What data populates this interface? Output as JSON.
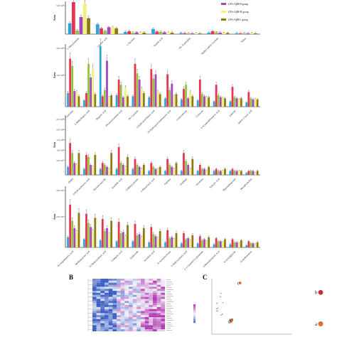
{
  "colors": {
    "groups": [
      "#2ea4d8",
      "#e8344e",
      "#8ec641",
      "#a445c3",
      "#f2ef7a",
      "#8d7b12"
    ],
    "heatmap_low": "#3b5fc4",
    "heatmap_mid": "#f4f4f8",
    "heatmap_high": "#b23ab3",
    "pca_points": [
      "#d7262c",
      "#f26b21"
    ]
  },
  "legend": {
    "entries": [
      "LPS+AβB-H group",
      "LPS+AβB-M group",
      "LPS+AβB-L group"
    ]
  },
  "panel_labels": {
    "b": "B",
    "c": "C"
  },
  "chart_data": [
    {
      "type": "bar",
      "panel": "A1",
      "ylabel": "Area",
      "y_ticks": [
        "5.0×10⁸"
      ],
      "categories": [
        "L-Phenylalanine",
        "Linoleic acid",
        "L-Tyrosine",
        "Taurine acid",
        "DL-Tryptophan",
        "Methyl indole-3-acetate",
        "Valine"
      ],
      "series_count": 6,
      "ylim": [
        0,
        9
      ],
      "values": [
        [
          3.0,
          8.8,
          1.0,
          4.7,
          8.4,
          4.4
        ],
        [
          2.7,
          1.6,
          0.9,
          1.9,
          1.9,
          1.6
        ],
        [
          0.6,
          0.8,
          0.4,
          0.5,
          0.4,
          0.4
        ],
        [
          1.4,
          0.7,
          0.6,
          0.5,
          0.4,
          0.4
        ],
        [
          0.3,
          0.25,
          0.2,
          0.2,
          0.2,
          0.2
        ],
        [
          0.4,
          0.8,
          0.5,
          0.4,
          0.3,
          0.3
        ],
        [
          0.25,
          0.2,
          0.2,
          0.2,
          0.2,
          0.2
        ]
      ],
      "sig": [
        "**",
        "a",
        "a",
        "**",
        "a"
      ]
    },
    {
      "type": "bar",
      "panel": "A2",
      "ylabel": "Area",
      "y_ticks": [
        "4.0×10⁸",
        "2.0×10⁸"
      ],
      "categories": [
        "Guanosine",
        "2-Methylbutyric acid",
        "Hippuric acid",
        "Decanoylcarnitine acid",
        "DL-Carnitine",
        "3-Hydroxyisobutyric acid",
        "20-Hydroxyeicosatetraenoic acid",
        "Corticosterone",
        "Cortisone",
        "4-Acetamidobutanoic acid",
        "Anserine",
        "Indole-3-lactic acid"
      ],
      "series_count": 6,
      "ylim": [
        0,
        6
      ],
      "values": [
        [
          1.3,
          4.6,
          3.9,
          1.5,
          1.4,
          1.0
        ],
        [
          0.6,
          1.3,
          4.1,
          2.8,
          3.6,
          1.2
        ],
        [
          5.8,
          1.0,
          1.6,
          4.4,
          0.9,
          1.1
        ],
        [
          1.1,
          2.6,
          2.1,
          0.9,
          1.8,
          1.0
        ],
        [
          1.0,
          4.1,
          3.2,
          2.6,
          1.7,
          1.3
        ],
        [
          0.9,
          3.6,
          2.7,
          3.1,
          1.4,
          1.2
        ],
        [
          0.8,
          3.1,
          1.6,
          2.2,
          1.0,
          1.2
        ],
        [
          0.7,
          1.7,
          2.1,
          0.8,
          1.4,
          1.0
        ],
        [
          0.6,
          2.6,
          1.2,
          1.0,
          0.9,
          0.9
        ],
        [
          0.5,
          2.1,
          1.1,
          0.9,
          0.8,
          0.8
        ],
        [
          0.5,
          1.9,
          0.9,
          0.8,
          0.7,
          0.8
        ],
        [
          0.4,
          1.4,
          0.8,
          0.7,
          0.7,
          0.7
        ]
      ]
    },
    {
      "type": "bar",
      "panel": "A3",
      "ylabel": "Area",
      "y_ticks": [
        "2.5×10⁸",
        "2.0×10⁸",
        "1.5×10⁸",
        "1.0×10⁸",
        "5.0×10⁷"
      ],
      "categories": [
        "DHPE",
        "3-Hydroxybenzoic acid",
        "Thromboxane B2",
        "Arachidic acid",
        "3-Methylcytosine",
        "3-Phenyllactic acid",
        "Arginine",
        "Ornithine",
        "Serotonin",
        "Salicylic acid",
        "Phytosphingosine",
        "Phosphocholine"
      ],
      "series_count": 6,
      "ylim": [
        0,
        3
      ],
      "values": [
        [
          0.4,
          1.6,
          1.1,
          0.6,
          0.5,
          1.1
        ],
        [
          0.3,
          1.0,
          0.9,
          0.5,
          0.4,
          1.0
        ],
        [
          0.3,
          0.6,
          0.5,
          0.4,
          0.3,
          1.1
        ],
        [
          0.3,
          1.4,
          0.6,
          0.5,
          0.4,
          0.9
        ],
        [
          0.3,
          0.8,
          0.5,
          0.4,
          0.3,
          0.5
        ],
        [
          0.2,
          0.6,
          0.4,
          0.3,
          0.3,
          0.4
        ],
        [
          0.2,
          0.8,
          0.5,
          0.4,
          0.3,
          0.6
        ],
        [
          0.2,
          1.1,
          0.7,
          0.5,
          0.3,
          0.8
        ],
        [
          0.2,
          0.5,
          0.3,
          0.3,
          0.2,
          0.4
        ],
        [
          0.2,
          0.3,
          0.2,
          0.2,
          0.2,
          0.3
        ],
        [
          0.2,
          0.3,
          0.2,
          0.2,
          0.2,
          0.2
        ],
        [
          0.1,
          0.2,
          0.2,
          0.2,
          0.1,
          0.2
        ]
      ]
    },
    {
      "type": "bar",
      "panel": "A4",
      "ylabel": "Area",
      "y_ticks": [
        "4.0×10⁶",
        "2.0×10⁶"
      ],
      "categories": [
        "Eicosapentaenoic acid",
        "Methylmalonic acid",
        "12-Hydroxystearic acid",
        "Ginkgolic acid",
        "Salidroside",
        "Isovaleric acid",
        "N-Acetylserotonin",
        "2-Hydroxystearic acid",
        "L-γ-Glutamyl-L-glutamine",
        "2-Phenylpropionic acid",
        "N-Acetylglycine",
        "Acetylhistamine"
      ],
      "series_count": 6,
      "ylim": [
        0,
        6
      ],
      "values": [
        [
          1.0,
          4.2,
          2.6,
          1.9,
          1.5,
          3.4
        ],
        [
          0.8,
          3.3,
          2.4,
          2.0,
          1.6,
          2.9
        ],
        [
          0.7,
          2.8,
          1.6,
          1.9,
          1.3,
          2.6
        ],
        [
          0.6,
          2.5,
          1.4,
          1.5,
          1.1,
          2.2
        ],
        [
          0.6,
          2.3,
          1.2,
          1.3,
          1.0,
          1.9
        ],
        [
          0.5,
          2.0,
          1.3,
          1.1,
          0.9,
          1.6
        ],
        [
          0.5,
          1.7,
          0.9,
          1.0,
          0.8,
          1.4
        ],
        [
          0.4,
          1.4,
          0.8,
          0.9,
          0.7,
          1.2
        ],
        [
          0.4,
          1.1,
          0.7,
          0.8,
          0.6,
          1.0
        ],
        [
          0.3,
          0.9,
          0.6,
          0.6,
          0.5,
          0.8
        ],
        [
          0.3,
          0.8,
          0.5,
          0.5,
          0.4,
          0.7
        ],
        [
          0.2,
          0.6,
          0.4,
          0.4,
          0.3,
          0.5
        ]
      ]
    },
    {
      "type": "scatter",
      "panel": "C",
      "points": [
        {
          "label": "c",
          "x": 0.14,
          "y": 0.97
        },
        {
          "label": "b",
          "x": 0.95,
          "y": 0.58
        },
        {
          "label": "a",
          "x": 0.95,
          "y": -0.72
        },
        {
          "label": "e",
          "x": 0.06,
          "y": -0.55
        },
        {
          "label": "d",
          "x": 0.05,
          "y": -0.62
        }
      ]
    }
  ]
}
